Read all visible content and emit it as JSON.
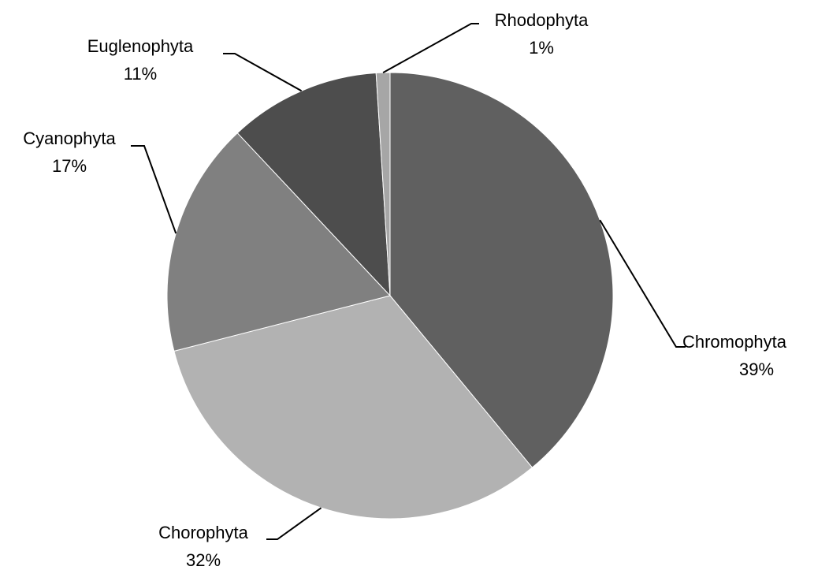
{
  "chart_data": {
    "type": "pie",
    "categories": [
      "Chromophyta",
      "Chorophyta",
      "Cyanophyta",
      "Euglenophyta",
      "Rhodophyta"
    ],
    "values": [
      39,
      32,
      17,
      11,
      1
    ],
    "value_labels": [
      "39%",
      "32%",
      "17%",
      "11%",
      "1%"
    ],
    "colors": [
      "#606060",
      "#b2b2b2",
      "#808080",
      "#4d4d4d",
      "#a6a6a6"
    ]
  }
}
